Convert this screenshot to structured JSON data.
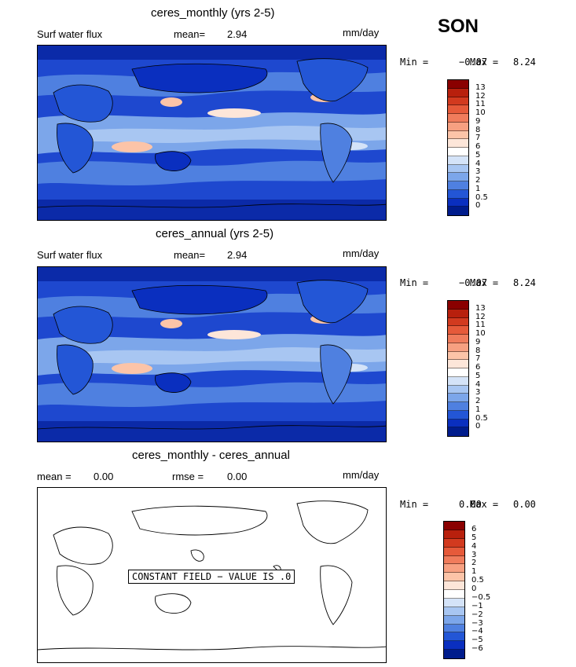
{
  "season": "SON",
  "panels": [
    {
      "title": "ceres_monthly (yrs 2-5)",
      "variable": "Surf water flux",
      "stat_label": "mean=",
      "stat_value": "2.94",
      "units": "mm/day",
      "min_label": "Min =",
      "min_value": "−0.07",
      "max_label": "Max =",
      "max_value": "8.24",
      "colorbar": {
        "labels": [
          "13",
          "12",
          "11",
          "10",
          "9",
          "8",
          "7",
          "6",
          "5",
          "4",
          "3",
          "2",
          "1",
          "0.5",
          "0"
        ],
        "colors": [
          "#8a0000",
          "#b8200d",
          "#d23a1f",
          "#e65a3a",
          "#f07c5c",
          "#f7a081",
          "#fcc4a8",
          "#fde6d9",
          "#ffffff",
          "#d4e3f8",
          "#a8c6f2",
          "#7ca6ea",
          "#4f80e0",
          "#2356d6",
          "#0a2fbf",
          "#001c8c"
        ]
      }
    },
    {
      "title": "ceres_annual (yrs 2-5)",
      "variable": "Surf water flux",
      "stat_label": "mean=",
      "stat_value": "2.94",
      "units": "mm/day",
      "min_label": "Min =",
      "min_value": "−0.07",
      "max_label": "Max =",
      "max_value": "8.24",
      "colorbar": {
        "labels": [
          "13",
          "12",
          "11",
          "10",
          "9",
          "8",
          "7",
          "6",
          "5",
          "4",
          "3",
          "2",
          "1",
          "0.5",
          "0"
        ],
        "colors": [
          "#8a0000",
          "#b8200d",
          "#d23a1f",
          "#e65a3a",
          "#f07c5c",
          "#f7a081",
          "#fcc4a8",
          "#fde6d9",
          "#ffffff",
          "#d4e3f8",
          "#a8c6f2",
          "#7ca6ea",
          "#4f80e0",
          "#2356d6",
          "#0a2fbf",
          "#001c8c"
        ]
      }
    },
    {
      "title": "ceres_monthly - ceres_annual",
      "mean_label": "mean =",
      "mean_value": "0.00",
      "rmse_label": "rmse =",
      "rmse_value": "0.00",
      "units": "mm/day",
      "min_label": "Min =",
      "min_value": "0.00",
      "max_label": "Max =",
      "max_value": "0.00",
      "constant_text": "CONSTANT FIELD − VALUE IS .0",
      "colorbar": {
        "labels": [
          "6",
          "5",
          "4",
          "3",
          "2",
          "1",
          "0.5",
          "0",
          "−0.5",
          "−1",
          "−2",
          "−3",
          "−4",
          "−5",
          "−6"
        ],
        "colors": [
          "#8a0000",
          "#b8200d",
          "#d23a1f",
          "#e65a3a",
          "#f07c5c",
          "#f7a081",
          "#fcc4a8",
          "#fde6d9",
          "#ffffff",
          "#d4e3f8",
          "#a8c6f2",
          "#7ca6ea",
          "#4f80e0",
          "#2356d6",
          "#0a2fbf",
          "#001c8c"
        ]
      }
    }
  ]
}
